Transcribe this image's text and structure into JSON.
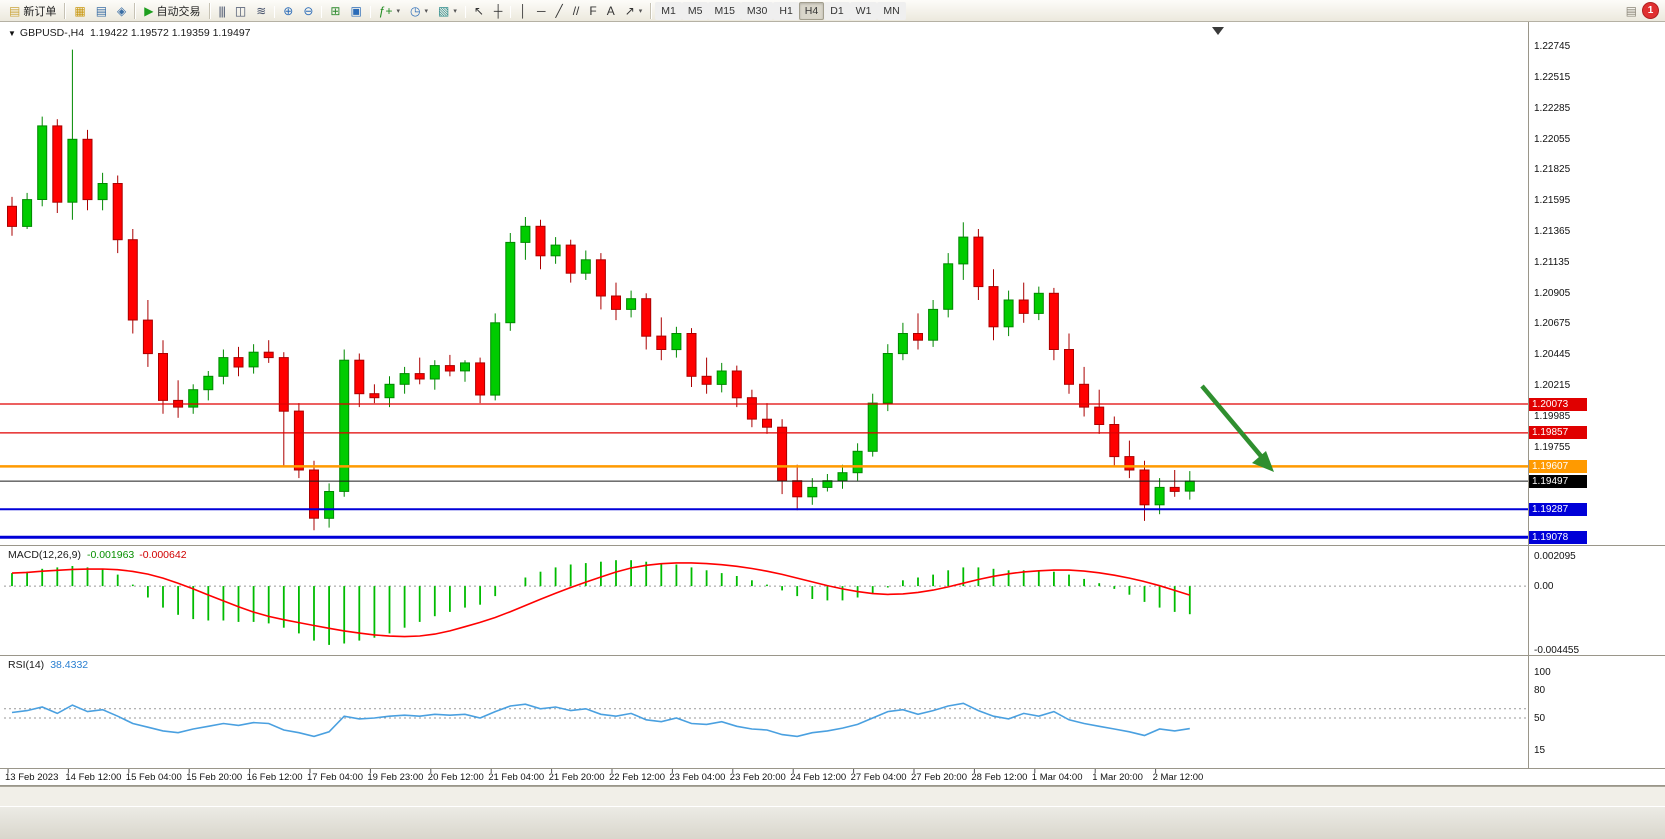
{
  "toolbar": {
    "new_order_label": "新订单",
    "autotrading_label": "自动交易",
    "notification_count": "1",
    "left_icons": [
      {
        "name": "new-chart-icon",
        "glyph": "▦",
        "color": "#c8960c"
      },
      {
        "name": "market-watch-icon",
        "glyph": "▤",
        "color": "#3a6ea5"
      },
      {
        "name": "navigator-icon",
        "glyph": "◈",
        "color": "#3a6ea5"
      }
    ],
    "tools": [
      {
        "name": "bar-chart-button",
        "glyph": "|||",
        "color": "#44506a"
      },
      {
        "name": "candlestick-button",
        "glyph": "◫",
        "color": "#44506a"
      },
      {
        "name": "line-chart-button",
        "glyph": "≋",
        "color": "#44506a"
      },
      {
        "sep": true
      },
      {
        "name": "zoom-in-button",
        "glyph": "⊕",
        "color": "#2b6cb8"
      },
      {
        "name": "zoom-out-button",
        "glyph": "⊖",
        "color": "#2b6cb8"
      },
      {
        "sep": true
      },
      {
        "name": "tile-windows-button",
        "glyph": "⊞",
        "color": "#2e8b2e"
      },
      {
        "name": "arrange-windows-button",
        "glyph": "▣",
        "color": "#2b6cb8"
      },
      {
        "sep": true
      },
      {
        "name": "indicators-button",
        "glyph": "ƒ+",
        "color": "#1e8a1e",
        "caret": true
      },
      {
        "name": "periods-button",
        "glyph": "◷",
        "color": "#2b6cb8",
        "caret": true
      },
      {
        "name": "templates-button",
        "glyph": "▧",
        "color": "#2b8b8b",
        "caret": true
      },
      {
        "sep": true
      },
      {
        "name": "cursor-button",
        "glyph": "↖",
        "color": "#333333"
      },
      {
        "name": "crosshair-button",
        "glyph": "┼",
        "color": "#333333"
      },
      {
        "sep": true
      },
      {
        "name": "vertical-line-button",
        "glyph": "│",
        "color": "#333333"
      },
      {
        "name": "horizontal-line-button",
        "glyph": "─",
        "color": "#333333"
      },
      {
        "name": "trendline-button",
        "glyph": "╱",
        "color": "#333333"
      },
      {
        "name": "channel-button",
        "glyph": "//",
        "color": "#333333"
      },
      {
        "name": "fibonacci-button",
        "glyph": "F",
        "color": "#333333"
      },
      {
        "name": "text-button",
        "glyph": "A",
        "color": "#333333"
      },
      {
        "name": "arrows-button",
        "glyph": "↗",
        "color": "#333333",
        "caret": true
      }
    ],
    "timeframes": [
      "M1",
      "M5",
      "M15",
      "M30",
      "H1",
      "H4",
      "D1",
      "W1",
      "MN"
    ],
    "active_timeframe": "H4"
  },
  "chart": {
    "symbol": "GBPUSD-,H4",
    "ohlc": "1.19422 1.19572 1.19359 1.19497"
  },
  "indicators": {
    "macd": {
      "name": "MACD(12,26,9)",
      "value_main": "-0.001963",
      "value_signal": "-0.000642",
      "axis": [
        {
          "text": "0.002095",
          "v": 0.002095
        },
        {
          "text": "0.00",
          "v": 0
        },
        {
          "text": "-0.004455",
          "v": -0.004455
        }
      ]
    },
    "rsi": {
      "name": "RSI(14)",
      "value": "38.4332",
      "axis": [
        {
          "text": "100",
          "v": 100
        },
        {
          "text": "80",
          "v": 80
        },
        {
          "text": "50",
          "v": 50
        },
        {
          "text": "15",
          "v": 15
        }
      ],
      "levels": [
        60,
        50
      ]
    }
  },
  "price_axis": {
    "ticks": [
      "1.22745",
      "1.22515",
      "1.22285",
      "1.22055",
      "1.21825",
      "1.21595",
      "1.21365",
      "1.21135",
      "1.20905",
      "1.20675",
      "1.20445",
      "1.20215",
      "1.19985",
      "1.19755"
    ],
    "badges": [
      {
        "text": "1.20073",
        "price": 1.20073,
        "color": "#e00000"
      },
      {
        "text": "1.19857",
        "price": 1.19857,
        "color": "#e00000"
      },
      {
        "text": "1.19607",
        "price": 1.19607,
        "color": "#ff9a00"
      },
      {
        "text": "1.19497",
        "price": 1.19497,
        "color": "#000000"
      },
      {
        "text": "1.19287",
        "price": 1.19287,
        "color": "#0000d8"
      },
      {
        "text": "1.19078",
        "price": 1.19078,
        "color": "#0000d8"
      }
    ]
  },
  "colors": {
    "candle_up": "#00cc00",
    "candle_up_border": "#008800",
    "candle_down": "#ff0000",
    "candle_down_border": "#aa0000",
    "macd_histogram": "#00bb00",
    "macd_signal": "#ff0000",
    "rsi_line": "#4aa0e0",
    "arrow": "#2f8f2f"
  },
  "chart_data": {
    "type": "candlestick",
    "symbol": "GBPUSD-",
    "timeframe": "H4",
    "price_range": [
      1.19035,
      1.22747
    ],
    "x_labels": [
      "13 Feb 2023",
      "14 Feb 12:00",
      "15 Feb 04:00",
      "15 Feb 20:00",
      "16 Feb 12:00",
      "17 Feb 04:00",
      "19 Feb 23:00",
      "20 Feb 12:00",
      "21 Feb 04:00",
      "21 Feb 20:00",
      "22 Feb 12:00",
      "23 Feb 04:00",
      "23 Feb 20:00",
      "24 Feb 12:00",
      "27 Feb 04:00",
      "27 Feb 20:00",
      "28 Feb 12:00",
      "1 Mar 04:00",
      "1 Mar 20:00",
      "2 Mar 12:00"
    ],
    "hlines": [
      {
        "price": 1.20073,
        "color": "#e00000",
        "width": 1.2
      },
      {
        "price": 1.19857,
        "color": "#e00000",
        "width": 1.2
      },
      {
        "price": 1.19607,
        "color": "#ff9a00",
        "width": 2.5
      },
      {
        "price": 1.19497,
        "color": "#1a1a1a",
        "width": 1
      },
      {
        "price": 1.19287,
        "color": "#0000d8",
        "width": 2
      },
      {
        "price": 1.19078,
        "color": "#0000d8",
        "width": 3
      }
    ],
    "candles": [
      [
        1.2155,
        1.2162,
        1.2133,
        1.214
      ],
      [
        1.214,
        1.2165,
        1.2138,
        1.216
      ],
      [
        1.216,
        1.2222,
        1.2155,
        1.2215
      ],
      [
        1.2215,
        1.222,
        1.215,
        1.2158
      ],
      [
        1.2158,
        1.2272,
        1.2145,
        1.2205
      ],
      [
        1.2205,
        1.2212,
        1.2152,
        1.216
      ],
      [
        1.216,
        1.218,
        1.2152,
        1.2172
      ],
      [
        1.2172,
        1.2178,
        1.212,
        1.213
      ],
      [
        1.213,
        1.2138,
        1.206,
        1.207
      ],
      [
        1.207,
        1.2085,
        1.2035,
        1.2045
      ],
      [
        1.2045,
        1.2055,
        1.2,
        1.201
      ],
      [
        1.201,
        1.2025,
        1.1997,
        1.2005
      ],
      [
        1.2005,
        1.2022,
        1.2,
        1.2018
      ],
      [
        1.2018,
        1.2032,
        1.201,
        1.2028
      ],
      [
        1.2028,
        1.2048,
        1.2022,
        1.2042
      ],
      [
        1.2042,
        1.205,
        1.2028,
        1.2035
      ],
      [
        1.2035,
        1.2052,
        1.203,
        1.2046
      ],
      [
        1.2046,
        1.2055,
        1.2038,
        1.2042
      ],
      [
        1.2042,
        1.2046,
        1.196,
        1.2002
      ],
      [
        1.2002,
        1.2008,
        1.1952,
        1.1958
      ],
      [
        1.1958,
        1.1965,
        1.1913,
        1.1922
      ],
      [
        1.1922,
        1.1948,
        1.1915,
        1.1942
      ],
      [
        1.1942,
        1.2048,
        1.1938,
        1.204
      ],
      [
        1.204,
        1.2045,
        1.2005,
        1.2015
      ],
      [
        1.2015,
        1.2022,
        1.2008,
        1.2012
      ],
      [
        1.2012,
        1.2028,
        1.2005,
        1.2022
      ],
      [
        1.2022,
        1.2035,
        1.2015,
        1.203
      ],
      [
        1.203,
        1.2042,
        1.2022,
        1.2026
      ],
      [
        1.2026,
        1.204,
        1.2018,
        1.2036
      ],
      [
        1.2036,
        1.2044,
        1.2028,
        1.2032
      ],
      [
        1.2032,
        1.204,
        1.2024,
        1.2038
      ],
      [
        1.2038,
        1.2042,
        1.2008,
        1.2014
      ],
      [
        1.2014,
        1.2075,
        1.201,
        1.2068
      ],
      [
        1.2068,
        1.2135,
        1.2062,
        1.2128
      ],
      [
        1.2128,
        1.2147,
        1.2115,
        1.214
      ],
      [
        1.214,
        1.2145,
        1.2108,
        1.2118
      ],
      [
        1.2118,
        1.2132,
        1.2112,
        1.2126
      ],
      [
        1.2126,
        1.213,
        1.2098,
        1.2105
      ],
      [
        1.2105,
        1.2122,
        1.21,
        1.2115
      ],
      [
        1.2115,
        1.212,
        1.2078,
        1.2088
      ],
      [
        1.2088,
        1.2098,
        1.207,
        1.2078
      ],
      [
        1.2078,
        1.2092,
        1.2072,
        1.2086
      ],
      [
        1.2086,
        1.209,
        1.2048,
        1.2058
      ],
      [
        1.2058,
        1.2072,
        1.204,
        1.2048
      ],
      [
        1.2048,
        1.2065,
        1.2042,
        1.206
      ],
      [
        1.206,
        1.2064,
        1.202,
        1.2028
      ],
      [
        1.2028,
        1.2042,
        1.2015,
        1.2022
      ],
      [
        1.2022,
        1.2038,
        1.2016,
        1.2032
      ],
      [
        1.2032,
        1.2036,
        1.2005,
        1.2012
      ],
      [
        1.2012,
        1.2018,
        1.199,
        1.1996
      ],
      [
        1.1996,
        1.2008,
        1.1985,
        1.199
      ],
      [
        1.199,
        1.1996,
        1.194,
        1.195
      ],
      [
        1.195,
        1.1962,
        1.1928,
        1.1938
      ],
      [
        1.1938,
        1.1952,
        1.1932,
        1.1945
      ],
      [
        1.1945,
        1.1955,
        1.1942,
        1.195
      ],
      [
        1.195,
        1.1962,
        1.1944,
        1.1956
      ],
      [
        1.1956,
        1.1978,
        1.195,
        1.1972
      ],
      [
        1.1972,
        1.2015,
        1.1968,
        1.2008
      ],
      [
        1.2008,
        1.2052,
        1.2002,
        1.2045
      ],
      [
        1.2045,
        1.2068,
        1.204,
        1.206
      ],
      [
        1.206,
        1.2075,
        1.2048,
        1.2055
      ],
      [
        1.2055,
        1.2085,
        1.205,
        1.2078
      ],
      [
        1.2078,
        1.212,
        1.2072,
        1.2112
      ],
      [
        1.2112,
        1.2143,
        1.21,
        1.2132
      ],
      [
        1.2132,
        1.2138,
        1.2085,
        1.2095
      ],
      [
        1.2095,
        1.2108,
        1.2055,
        1.2065
      ],
      [
        1.2065,
        1.2092,
        1.2058,
        1.2085
      ],
      [
        1.2085,
        1.2098,
        1.2068,
        1.2075
      ],
      [
        1.2075,
        1.2095,
        1.207,
        1.209
      ],
      [
        1.209,
        1.2094,
        1.204,
        1.2048
      ],
      [
        1.2048,
        1.206,
        1.2015,
        1.2022
      ],
      [
        1.2022,
        1.2035,
        1.1998,
        1.2005
      ],
      [
        1.2005,
        1.2018,
        1.1985,
        1.1992
      ],
      [
        1.1992,
        1.1998,
        1.196,
        1.1968
      ],
      [
        1.1968,
        1.198,
        1.1952,
        1.1958
      ],
      [
        1.1958,
        1.1965,
        1.192,
        1.1932
      ],
      [
        1.1932,
        1.1952,
        1.1925,
        1.1945
      ],
      [
        1.1945,
        1.1958,
        1.1938,
        1.1942
      ],
      [
        1.19422,
        1.19572,
        1.19359,
        1.19497
      ]
    ],
    "macd_histogram": [
      0.0009,
      0.001,
      0.0012,
      0.0013,
      0.0014,
      0.0013,
      0.0012,
      0.0008,
      0.0001,
      -0.0008,
      -0.0015,
      -0.002,
      -0.0023,
      -0.0024,
      -0.0024,
      -0.0025,
      -0.0025,
      -0.0026,
      -0.0029,
      -0.0033,
      -0.0038,
      -0.0041,
      -0.004,
      -0.0038,
      -0.0036,
      -0.0033,
      -0.0029,
      -0.0025,
      -0.0021,
      -0.0018,
      -0.0015,
      -0.0013,
      -0.0007,
      0.0,
      0.0006,
      0.001,
      0.0013,
      0.0015,
      0.0016,
      0.0017,
      0.0018,
      0.0018,
      0.0017,
      0.0016,
      0.0015,
      0.0013,
      0.0011,
      0.0009,
      0.0007,
      0.0004,
      0.0001,
      -0.0003,
      -0.0007,
      -0.0009,
      -0.001,
      -0.001,
      -0.0008,
      -0.0005,
      -0.0001,
      0.0004,
      0.0006,
      0.0008,
      0.0011,
      0.0013,
      0.0013,
      0.0012,
      0.0011,
      0.0011,
      0.0011,
      0.001,
      0.0008,
      0.0005,
      0.0002,
      -0.0002,
      -0.0006,
      -0.0011,
      -0.0015,
      -0.0018,
      -0.001963
    ],
    "macd_axis_range": [
      -0.004455,
      0.002095
    ],
    "rsi_values": [
      56,
      58,
      62,
      55,
      64,
      57,
      59,
      52,
      44,
      40,
      36,
      34,
      38,
      41,
      44,
      42,
      45,
      44,
      37,
      34,
      30,
      35,
      52,
      49,
      50,
      52,
      53,
      52,
      54,
      53,
      54,
      50,
      57,
      63,
      65,
      60,
      62,
      58,
      60,
      54,
      52,
      55,
      48,
      46,
      50,
      44,
      43,
      46,
      41,
      38,
      37,
      32,
      30,
      34,
      36,
      39,
      43,
      50,
      57,
      59,
      54,
      58,
      63,
      66,
      58,
      52,
      49,
      55,
      52,
      57,
      48,
      44,
      41,
      38,
      35,
      31,
      38,
      36,
      38.43
    ],
    "rsi_range": [
      0,
      100
    ],
    "annotations": [
      {
        "type": "arrow-down-right",
        "color": "#2f8f2f"
      }
    ]
  }
}
